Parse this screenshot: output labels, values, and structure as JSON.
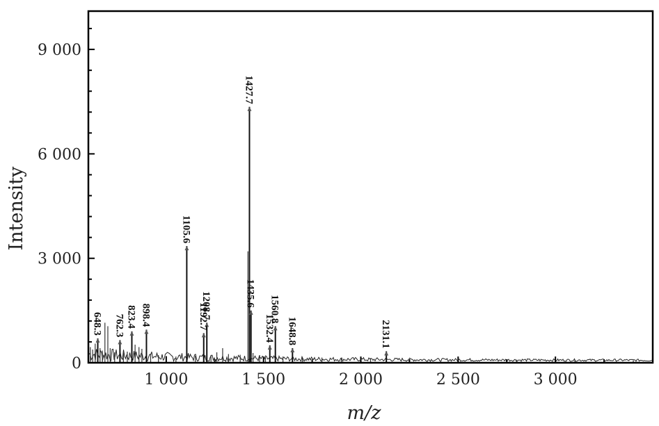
{
  "chart_data": {
    "type": "line",
    "title": "",
    "xlabel": "m/z",
    "ylabel": "Intensity",
    "xlim": [
      600,
      3500
    ],
    "ylim": [
      0,
      10100
    ],
    "x_ticks": [
      1000,
      1500,
      2000,
      2500,
      3000
    ],
    "x_tick_labels": [
      "1 000",
      "1 500",
      "2 000",
      "2 500",
      "3 000"
    ],
    "y_ticks": [
      0,
      3000,
      6000,
      9000
    ],
    "y_tick_labels": [
      "0",
      "3 000",
      "6 000",
      "9 000"
    ],
    "grid": false,
    "legend": "none",
    "labeled_peaks": [
      {
        "label": "648.3",
        "x": 648.3,
        "y": 700
      },
      {
        "label": "762.3",
        "x": 762.3,
        "y": 650
      },
      {
        "label": "823.4",
        "x": 823.4,
        "y": 900
      },
      {
        "label": "898.4",
        "x": 898.4,
        "y": 950
      },
      {
        "label": "1105.6",
        "x": 1105.6,
        "y": 3350
      },
      {
        "label": "1192.7",
        "x": 1192.7,
        "y": 850
      },
      {
        "label": "1208.7",
        "x": 1208.7,
        "y": 1150
      },
      {
        "label": "1427.7",
        "x": 1427.7,
        "y": 7350
      },
      {
        "label": "1435.6",
        "x": 1435.6,
        "y": 1500
      },
      {
        "label": "1532.4",
        "x": 1532.4,
        "y": 500
      },
      {
        "label": "1560.8",
        "x": 1560.8,
        "y": 1050
      },
      {
        "label": "1648.8",
        "x": 1648.8,
        "y": 420
      },
      {
        "label": "2131.1",
        "x": 2131.1,
        "y": 330
      }
    ],
    "minor_peaks": [
      {
        "x": 610,
        "y": 450
      },
      {
        "x": 622,
        "y": 380
      },
      {
        "x": 635,
        "y": 550
      },
      {
        "x": 660,
        "y": 420
      },
      {
        "x": 672,
        "y": 350
      },
      {
        "x": 685,
        "y": 1150
      },
      {
        "x": 700,
        "y": 1050
      },
      {
        "x": 712,
        "y": 420
      },
      {
        "x": 735,
        "y": 300
      },
      {
        "x": 780,
        "y": 280
      },
      {
        "x": 800,
        "y": 320
      },
      {
        "x": 840,
        "y": 520
      },
      {
        "x": 860,
        "y": 450
      },
      {
        "x": 875,
        "y": 400
      },
      {
        "x": 920,
        "y": 260
      },
      {
        "x": 960,
        "y": 220
      },
      {
        "x": 1000,
        "y": 200
      },
      {
        "x": 1050,
        "y": 180
      },
      {
        "x": 1150,
        "y": 200
      },
      {
        "x": 1230,
        "y": 220
      },
      {
        "x": 1260,
        "y": 300
      },
      {
        "x": 1290,
        "y": 420
      },
      {
        "x": 1320,
        "y": 250
      },
      {
        "x": 1380,
        "y": 230
      },
      {
        "x": 1420,
        "y": 3200
      },
      {
        "x": 1446,
        "y": 280
      },
      {
        "x": 1480,
        "y": 220
      },
      {
        "x": 1510,
        "y": 160
      },
      {
        "x": 1600,
        "y": 180
      },
      {
        "x": 1700,
        "y": 140
      },
      {
        "x": 1800,
        "y": 150
      },
      {
        "x": 1900,
        "y": 120
      },
      {
        "x": 2050,
        "y": 110
      },
      {
        "x": 2250,
        "y": 100
      },
      {
        "x": 2500,
        "y": 90
      },
      {
        "x": 2800,
        "y": 90
      },
      {
        "x": 3100,
        "y": 80
      },
      {
        "x": 3400,
        "y": 70
      }
    ]
  }
}
